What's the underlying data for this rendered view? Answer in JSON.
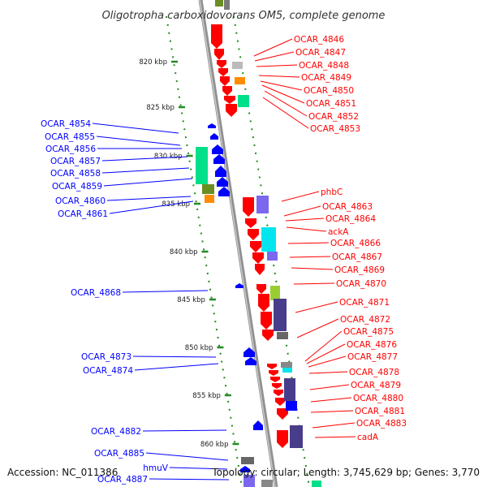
{
  "title": "Oligotropha carboxidovorans OM5, complete genome",
  "footer": {
    "accession": "Accession: NC_011386",
    "topology": "Topology: circular; Length: 3,745,629 bp; Genes: 3,770"
  },
  "colors": {
    "red": "#ff0000",
    "blue": "#0000ff",
    "green": "#228b22",
    "axis": "#888888"
  },
  "kbp_marks": [
    "820 kbp",
    "825 kbp",
    "830 kbp",
    "835 kbp",
    "840 kbp",
    "845 kbp",
    "850 kbp",
    "855 kbp",
    "860 kbp"
  ],
  "right_labels": [
    "OCAR_4846",
    "OCAR_4847",
    "OCAR_4848",
    "OCAR_4849",
    "OCAR_4850",
    "OCAR_4851",
    "OCAR_4852",
    "OCAR_4853",
    "phbC",
    "OCAR_4863",
    "OCAR_4864",
    "ackA",
    "OCAR_4866",
    "OCAR_4867",
    "OCAR_4869",
    "OCAR_4870",
    "OCAR_4871",
    "OCAR_4872",
    "OCAR_4875",
    "OCAR_4876",
    "OCAR_4877",
    "OCAR_4878",
    "OCAR_4879",
    "OCAR_4880",
    "OCAR_4881",
    "OCAR_4883",
    "cadA"
  ],
  "left_labels": [
    "OCAR_4854",
    "OCAR_4855",
    "OCAR_4856",
    "OCAR_4857",
    "OCAR_4858",
    "OCAR_4859",
    "OCAR_4860",
    "OCAR_4861",
    "OCAR_4868",
    "OCAR_4873",
    "OCAR_4874",
    "OCAR_4882",
    "OCAR_4885",
    "hmuV",
    "OCAR_4887"
  ]
}
